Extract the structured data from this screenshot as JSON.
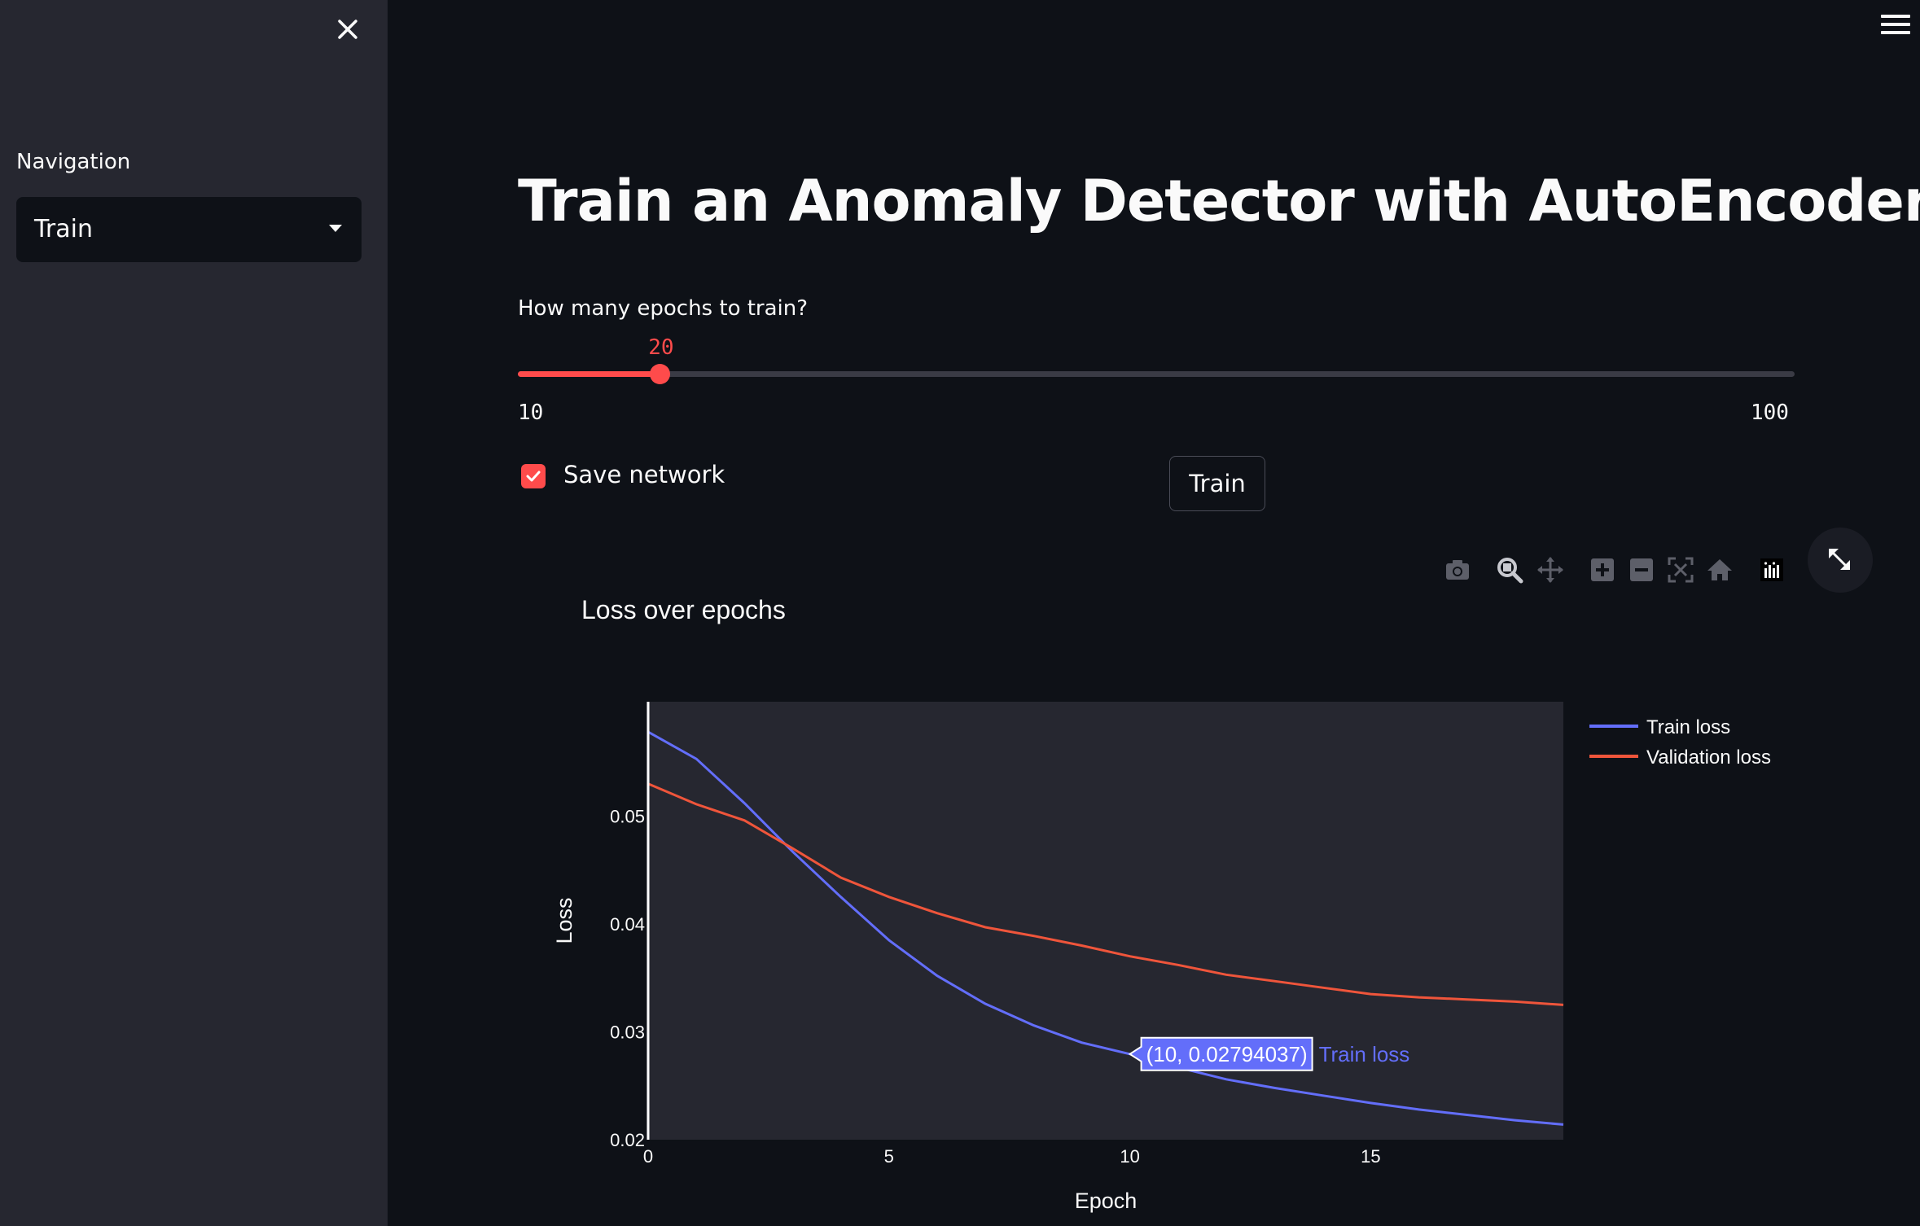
{
  "sidebar": {
    "nav_label": "Navigation",
    "nav_value": "Train"
  },
  "main": {
    "title": "Train an Anomaly Detector with AutoEncoder",
    "slider": {
      "label": "How many epochs to train?",
      "value": 20,
      "min": 10,
      "max": 100
    },
    "checkbox": {
      "label": "Save network",
      "checked": true
    },
    "train_button": "Train"
  },
  "modebar": [
    "camera-icon",
    "zoom-icon",
    "pan-icon",
    "zoom-in-icon",
    "zoom-out-icon",
    "autoscale-icon",
    "home-icon",
    "plotly-logo-icon"
  ],
  "colors": {
    "accent": "#ff4b4b",
    "train": "#636efa",
    "validation": "#ef553b"
  },
  "tooltip": {
    "text": "(10, 0.02794037)",
    "series": "Train loss"
  },
  "chart_data": {
    "type": "line",
    "title": "Loss over epochs",
    "xlabel": "Epoch",
    "ylabel": "Loss",
    "xlim": [
      0,
      19
    ],
    "ylim": [
      0.02,
      0.0606
    ],
    "x": [
      0,
      1,
      2,
      3,
      4,
      5,
      6,
      7,
      8,
      9,
      10,
      11,
      12,
      13,
      14,
      15,
      16,
      17,
      18,
      19
    ],
    "x_ticks": [
      "0",
      "5",
      "10",
      "15"
    ],
    "y_ticks": [
      "0.02",
      "0.03",
      "0.04",
      "0.05"
    ],
    "legend_position": "top-right",
    "series": [
      {
        "name": "Train loss",
        "values": [
          0.0578,
          0.0553,
          0.0512,
          0.0467,
          0.0425,
          0.0385,
          0.0352,
          0.0326,
          0.0306,
          0.029,
          0.02794,
          0.0267,
          0.0256,
          0.0248,
          0.0241,
          0.0234,
          0.0228,
          0.0223,
          0.0218,
          0.0214
        ]
      },
      {
        "name": "Validation loss",
        "values": [
          0.053,
          0.0511,
          0.0496,
          0.047,
          0.0443,
          0.0425,
          0.041,
          0.0397,
          0.0389,
          0.038,
          0.037,
          0.0362,
          0.0353,
          0.0347,
          0.0341,
          0.0335,
          0.0332,
          0.033,
          0.0328,
          0.0325
        ]
      }
    ]
  }
}
